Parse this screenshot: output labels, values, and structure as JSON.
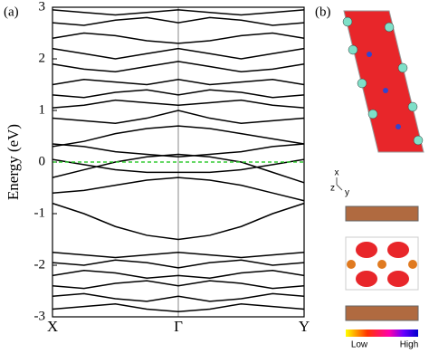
{
  "chart_data": {
    "type": "line",
    "panel_label": "(a)",
    "y_label": "Energy (eV)",
    "x": [
      0,
      0.25,
      0.5,
      0.75,
      1,
      1.25,
      1.5,
      1.75,
      2
    ],
    "xlim": [
      0,
      2
    ],
    "xticks": [
      {
        "value": 0,
        "label": "X"
      },
      {
        "value": 1,
        "label": "Γ"
      },
      {
        "value": 2,
        "label": "Y"
      }
    ],
    "ylim": [
      -3,
      3
    ],
    "yticks": [
      -3,
      -2,
      -1,
      0,
      1,
      2,
      3
    ],
    "line_color": "#000000",
    "vertical_line_x": 1,
    "vertical_line_color": "#888888",
    "fermi_level": 0,
    "fermi_color": "#33cc33",
    "series": [
      {
        "values": [
          -0.8,
          -1.0,
          -1.25,
          -1.42,
          -1.5,
          -1.42,
          -1.25,
          -1.0,
          -0.8
        ]
      },
      {
        "values": [
          -0.6,
          -0.55,
          -0.45,
          -0.35,
          -0.3,
          -0.35,
          -0.45,
          -0.6,
          -0.75
        ]
      },
      {
        "values": [
          0.05,
          -0.05,
          -0.15,
          -0.2,
          -0.2,
          -0.2,
          -0.15,
          -0.05,
          0.05
        ]
      },
      {
        "values": [
          -0.3,
          -0.15,
          0.0,
          0.1,
          0.15,
          0.1,
          0.0,
          -0.2,
          -0.4
        ]
      },
      {
        "values": [
          0.35,
          0.3,
          0.2,
          0.15,
          0.1,
          0.15,
          0.2,
          0.3,
          0.35
        ]
      },
      {
        "values": [
          0.3,
          0.4,
          0.55,
          0.65,
          0.7,
          0.65,
          0.55,
          0.45,
          0.35
        ]
      },
      {
        "values": [
          0.85,
          0.8,
          0.75,
          0.85,
          1.0,
          0.85,
          0.75,
          0.8,
          0.85
        ]
      },
      {
        "values": [
          1.05,
          1.1,
          1.2,
          1.15,
          1.1,
          1.15,
          1.2,
          1.1,
          1.05
        ]
      },
      {
        "values": [
          1.3,
          1.25,
          1.35,
          1.4,
          1.3,
          1.4,
          1.35,
          1.25,
          1.3
        ]
      },
      {
        "values": [
          1.5,
          1.6,
          1.55,
          1.5,
          1.6,
          1.5,
          1.55,
          1.6,
          1.5
        ]
      },
      {
        "values": [
          1.9,
          1.8,
          1.75,
          1.85,
          1.95,
          1.85,
          1.75,
          1.8,
          1.9
        ]
      },
      {
        "values": [
          2.2,
          2.1,
          2.0,
          2.1,
          2.2,
          2.1,
          2.0,
          2.1,
          2.2
        ]
      },
      {
        "values": [
          2.4,
          2.5,
          2.45,
          2.35,
          2.3,
          2.35,
          2.45,
          2.5,
          2.4
        ]
      },
      {
        "values": [
          2.7,
          2.65,
          2.75,
          2.8,
          2.7,
          2.8,
          2.75,
          2.65,
          2.7
        ]
      },
      {
        "values": [
          2.95,
          2.9,
          2.85,
          2.9,
          2.95,
          2.9,
          2.85,
          2.9,
          2.95
        ]
      },
      {
        "values": [
          -1.75,
          -1.8,
          -1.85,
          -1.8,
          -1.75,
          -1.8,
          -1.85,
          -1.8,
          -1.75
        ]
      },
      {
        "values": [
          -1.95,
          -2.0,
          -1.9,
          -1.95,
          -2.05,
          -1.95,
          -1.9,
          -2.0,
          -1.95
        ]
      },
      {
        "values": [
          -2.2,
          -2.1,
          -2.15,
          -2.25,
          -2.2,
          -2.25,
          -2.15,
          -2.1,
          -2.2
        ]
      },
      {
        "values": [
          -2.4,
          -2.45,
          -2.35,
          -2.3,
          -2.4,
          -2.3,
          -2.35,
          -2.45,
          -2.4
        ]
      },
      {
        "values": [
          -2.6,
          -2.55,
          -2.65,
          -2.7,
          -2.6,
          -2.7,
          -2.65,
          -2.55,
          -2.6
        ]
      },
      {
        "values": [
          -2.85,
          -2.8,
          -2.75,
          -2.85,
          -2.9,
          -2.85,
          -2.75,
          -2.8,
          -2.85
        ]
      }
    ]
  },
  "panel_b": {
    "label": "(b)",
    "axis_x": "x",
    "axis_z": "z",
    "axis_y": "y",
    "colorbar_low": "Low",
    "colorbar_high": "High"
  }
}
